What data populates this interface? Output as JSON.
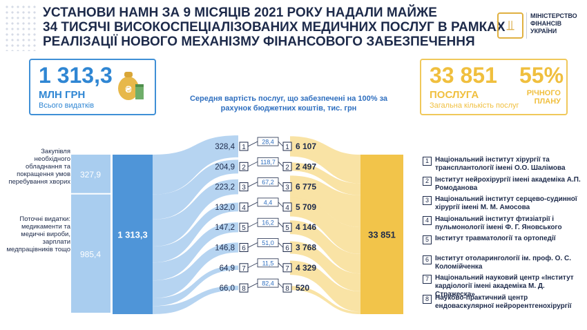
{
  "title_lines": [
    "УСТАНОВИ НАМН ЗА 9 МІСЯЦІВ 2021 РОКУ НАДАЛИ МАЙЖЕ",
    "34 ТИСЯЧІ ВИСОКОСПЕЦІАЛІЗОВАНИХ МЕДИЧНИХ ПОСЛУГ В РАМКАХ",
    "РЕАЛІЗАЦІЇ НОВОГО МЕХАНІЗМУ ФІНАНСОВОГО ЗАБЕЗПЕЧЕННЯ"
  ],
  "logo": {
    "line1": "МІНІСТЕРСТВО",
    "line2": "ФІНАНСІВ",
    "line3": "УКРАЇНИ"
  },
  "kpi_left": {
    "value": "1 313,3",
    "unit": "МЛН ГРН",
    "sub": "Всього видатків"
  },
  "kpi_right": {
    "value": "33 851",
    "unit": "ПОСЛУГА",
    "sub": "Загальна кількість послуг",
    "percent": "55%",
    "percent_label": "РІЧНОГО ПЛАНУ"
  },
  "caption": "Середня вартість послуг, що забезпечені на 100% за рахунок бюджетних коштів, тис. грн",
  "left_labels": {
    "equipment": "Закупівля необхідного обладнання та покращення умов перебування хворих",
    "current": "Поточні видатки: медикаменти та медичні вироби, зарплати медпрацівників тощо"
  },
  "colors": {
    "blue": "#4f95d8",
    "light_blue": "#a9cdef",
    "yellow": "#f2c44a",
    "light_yellow": "#f9e2a0",
    "navy": "#1d2a4a"
  },
  "chart_data": {
    "type": "sankey",
    "expenditure": [
      {
        "label": "Закупівля необхідного обладнання та покращення умов перебування хворих",
        "value": "327,9"
      },
      {
        "label": "Поточні видатки: медикаменти та медичні вироби, зарплати медпрацівників тощо",
        "value": "985,4"
      }
    ],
    "total_expenditure": "1 313,3",
    "total_services": "33 851",
    "institutions": [
      {
        "n": "1",
        "spending": "328,4",
        "avg_cost": "28,4",
        "services": "6 107",
        "name": "Національний інститут хірургії та трансплантології імені О.О. Шалімова"
      },
      {
        "n": "2",
        "spending": "204,9",
        "avg_cost": "118,7",
        "services": "2 497",
        "name": "Інститут нейрохірургії імені академіка А.П. Ромоданова"
      },
      {
        "n": "3",
        "spending": "223,2",
        "avg_cost": "67,2",
        "services": "6 775",
        "name": "Національний інститут серцево-судинної хірургії імені М. М. Амосова"
      },
      {
        "n": "4",
        "spending": "132,0",
        "avg_cost": "4,4",
        "services": "5 709",
        "name": "Національний інститут фтизіатрії і пульмонології імені Ф. Г. Яновського"
      },
      {
        "n": "5",
        "spending": "147,2",
        "avg_cost": "16,2",
        "services": "4 146",
        "name": "Інститут травматології та ортопедії"
      },
      {
        "n": "6",
        "spending": "146,8",
        "avg_cost": "51,0",
        "services": "3 768",
        "name": "Інститут отоларингології ім. проф. О. С. Коломійченка"
      },
      {
        "n": "7",
        "spending": "64,9",
        "avg_cost": "11,5",
        "services": "4 329",
        "name": "Національний науковий центр «Інститут кардіології імені академіка М. Д. Стражеска»"
      },
      {
        "n": "8",
        "spending": "66,0",
        "avg_cost": "82,4",
        "services": "520",
        "name": "Науково-практичний центр ендоваскулярної нейрорентгенохірургії"
      }
    ]
  }
}
